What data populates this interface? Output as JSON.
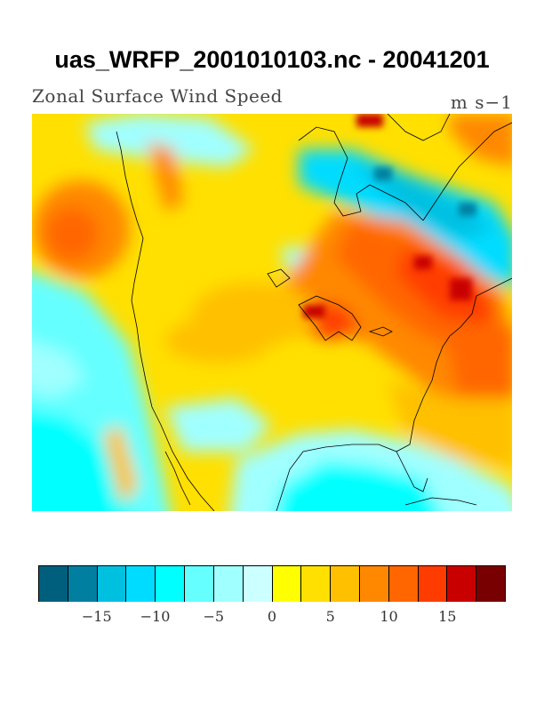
{
  "header": {
    "title": "uas_WRFP_2001010103.nc - 20041201",
    "left_label": "Zonal Surface Wind Speed",
    "right_label": "m s−1"
  },
  "colorbar": {
    "colors": [
      "#005f7d",
      "#007fa0",
      "#00c0e0",
      "#00dcff",
      "#00ffff",
      "#66ffff",
      "#a0ffff",
      "#ccffff",
      "#ffff00",
      "#ffe000",
      "#ffc000",
      "#ff8800",
      "#ff6600",
      "#ff3c00",
      "#c80000",
      "#780000"
    ],
    "ticks": [
      {
        "label": "−15",
        "index": 2
      },
      {
        "label": "−10",
        "index": 4
      },
      {
        "label": "−5",
        "index": 6
      },
      {
        "label": "0",
        "index": 8
      },
      {
        "label": "5",
        "index": 10
      },
      {
        "label": "10",
        "index": 12
      },
      {
        "label": "15",
        "index": 14
      }
    ]
  },
  "map": {
    "coastline_color": "#000000"
  }
}
